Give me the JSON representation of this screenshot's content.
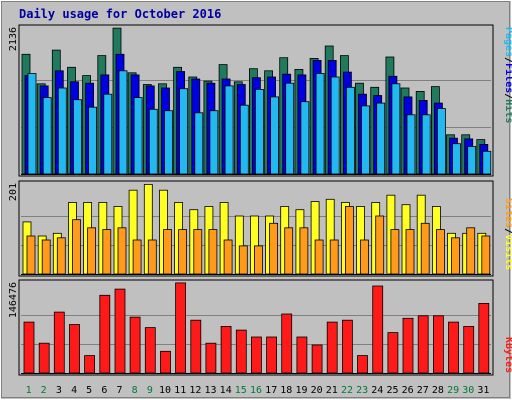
{
  "title": "Daily usage for October 2016",
  "colors": {
    "background": "#c0c0c0",
    "plot_background": "#c0c0c0",
    "grid": "#808080",
    "hits": "#1f7a5e",
    "files": "#0000e0",
    "pages": "#22b8f0",
    "visits": "#ffff22",
    "sites": "#ff9a1a",
    "kbytes": "#ff1a1a",
    "weekday": "#007a3c",
    "weekend": "#000000",
    "title": "#0000a0"
  },
  "chart_data": [
    {
      "type": "bar",
      "panel": "top",
      "ymax_label": "2136",
      "ylim": [
        0,
        2136
      ],
      "grid": true,
      "side_label_parts": [
        "Pages",
        "/",
        "Files",
        "/",
        "Hits"
      ],
      "categories": [
        "1",
        "2",
        "3",
        "4",
        "5",
        "6",
        "7",
        "8",
        "9",
        "10",
        "11",
        "12",
        "13",
        "14",
        "15",
        "16",
        "17",
        "18",
        "19",
        "20",
        "21",
        "22",
        "23",
        "24",
        "25",
        "26",
        "27",
        "28",
        "29",
        "30",
        "31"
      ],
      "series": [
        {
          "name": "Hits",
          "values": [
            1740,
            1310,
            1800,
            1550,
            1430,
            1720,
            2120,
            1470,
            1300,
            1310,
            1550,
            1410,
            1350,
            1590,
            1340,
            1530,
            1500,
            1690,
            1520,
            1680,
            1860,
            1720,
            1320,
            1260,
            1700,
            1250,
            1200,
            1270,
            570,
            570,
            500
          ]
        },
        {
          "name": "Files",
          "values": [
            1430,
            1280,
            1500,
            1340,
            1320,
            1440,
            1740,
            1440,
            1280,
            1250,
            1490,
            1380,
            1320,
            1380,
            1300,
            1400,
            1410,
            1450,
            1440,
            1650,
            1650,
            1480,
            1160,
            1140,
            1420,
            1120,
            1070,
            1030,
            520,
            510,
            430
          ]
        },
        {
          "name": "Pages",
          "values": [
            1460,
            1110,
            1250,
            1080,
            970,
            1160,
            1500,
            1110,
            940,
            920,
            1240,
            890,
            920,
            1280,
            1000,
            1230,
            1120,
            1320,
            1050,
            1460,
            1410,
            1260,
            990,
            1030,
            1310,
            860,
            860,
            950,
            440,
            400,
            330
          ]
        }
      ]
    },
    {
      "type": "bar",
      "panel": "middle",
      "ymax_label": "201",
      "ylim": [
        0,
        201
      ],
      "grid": true,
      "side_label_parts": [
        "Sites",
        "/",
        "Visits"
      ],
      "categories": [
        "1",
        "2",
        "3",
        "4",
        "5",
        "6",
        "7",
        "8",
        "9",
        "10",
        "11",
        "12",
        "13",
        "14",
        "15",
        "16",
        "17",
        "18",
        "19",
        "20",
        "21",
        "22",
        "23",
        "24",
        "25",
        "26",
        "27",
        "28",
        "29",
        "30",
        "31"
      ],
      "series": [
        {
          "name": "Visits",
          "values": [
            115,
            84,
            90,
            158,
            158,
            158,
            149,
            185,
            198,
            185,
            158,
            142,
            149,
            158,
            128,
            128,
            128,
            149,
            142,
            160,
            165,
            158,
            149,
            158,
            174,
            153,
            174,
            149,
            90,
            90,
            90
          ]
        },
        {
          "name": "Sites",
          "values": [
            84,
            75,
            80,
            120,
            102,
            98,
            102,
            75,
            75,
            98,
            98,
            98,
            98,
            75,
            62,
            62,
            112,
            102,
            102,
            75,
            75,
            149,
            75,
            128,
            98,
            98,
            112,
            98,
            80,
            102,
            84
          ]
        }
      ]
    },
    {
      "type": "bar",
      "panel": "bottom",
      "ymax_label": "146476",
      "ylim": [
        0,
        146476
      ],
      "grid": true,
      "side_label_parts": [
        "KBytes"
      ],
      "categories": [
        "1",
        "2",
        "3",
        "4",
        "5",
        "6",
        "7",
        "8",
        "9",
        "10",
        "11",
        "12",
        "13",
        "14",
        "15",
        "16",
        "17",
        "18",
        "19",
        "20",
        "21",
        "22",
        "23",
        "24",
        "25",
        "26",
        "27",
        "28",
        "29",
        "30",
        "31"
      ],
      "series": [
        {
          "name": "KBytes",
          "values": [
            82000,
            48000,
            98000,
            78000,
            28000,
            125000,
            135000,
            90000,
            73000,
            35000,
            145000,
            85000,
            48000,
            75000,
            69000,
            58000,
            58000,
            95000,
            58000,
            45000,
            82000,
            85000,
            28000,
            140000,
            65000,
            88000,
            92000,
            92000,
            82000,
            75000,
            112000
          ]
        }
      ]
    }
  ]
}
